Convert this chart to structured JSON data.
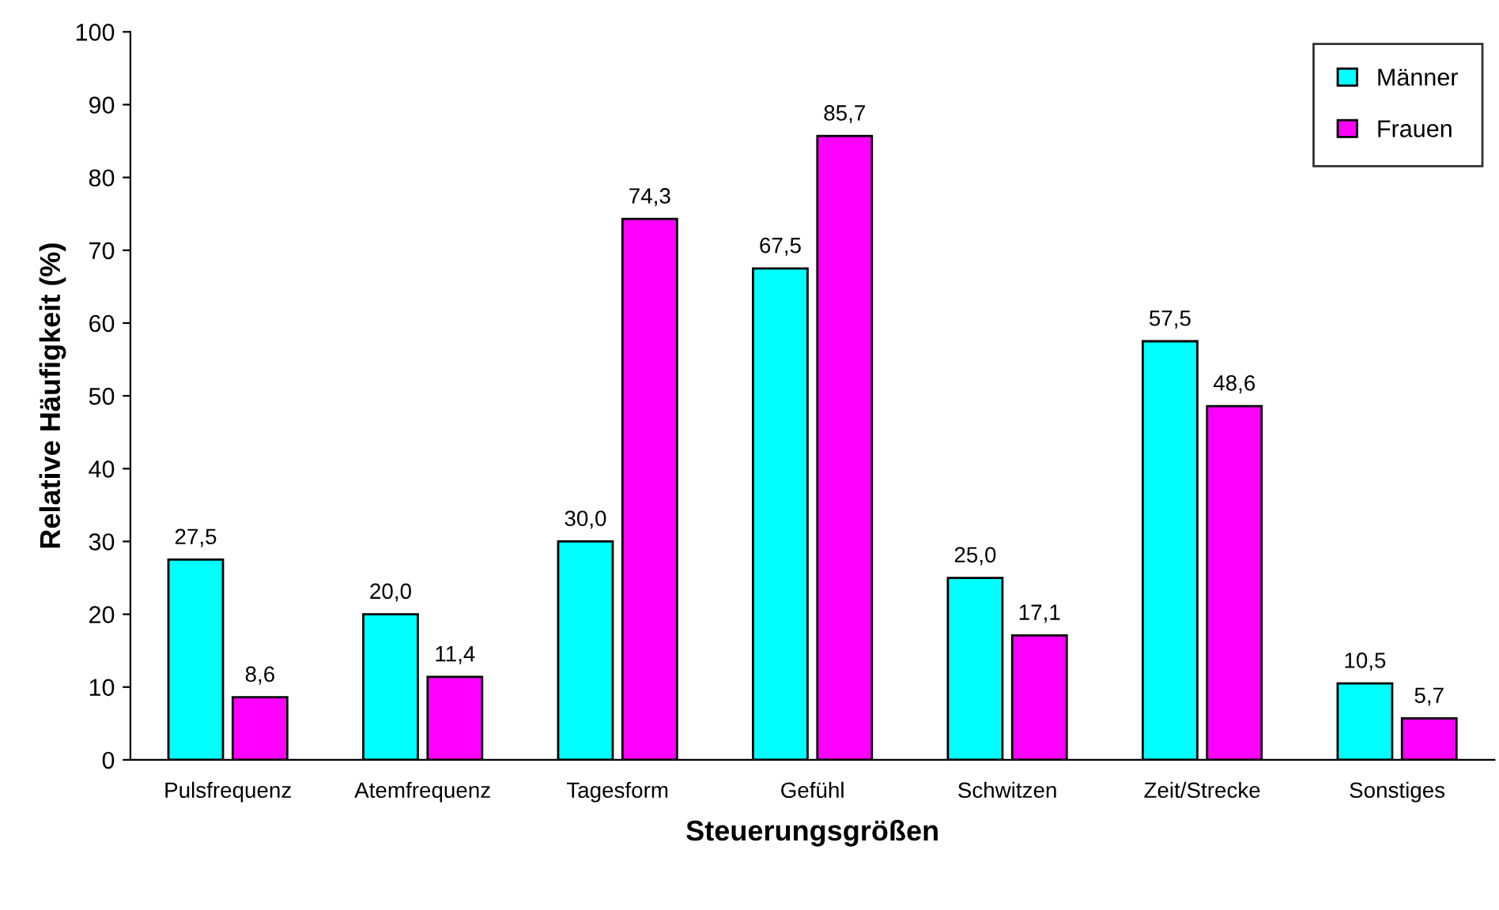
{
  "chart_data": {
    "type": "bar",
    "xlabel": "Steuerungsgrößen",
    "ylabel": "Relative Häufigkeit (%)",
    "categories": [
      "Pulsfrequenz",
      "Atemfrequenz",
      "Tagesform",
      "Gefühl",
      "Schwitzen",
      "Zeit/Strecke",
      "Sonstiges"
    ],
    "series": [
      {
        "name": "Männer",
        "color": "#00ffff",
        "values": [
          27.5,
          20.0,
          30.0,
          67.5,
          25.0,
          57.5,
          10.5
        ],
        "value_labels": [
          "27,5",
          "20,0",
          "30,0",
          "67,5",
          "25,0",
          "57,5",
          "10,5"
        ]
      },
      {
        "name": "Frauen",
        "color": "#ff00ff",
        "values": [
          8.6,
          11.4,
          74.3,
          85.7,
          17.1,
          48.6,
          5.7
        ],
        "value_labels": [
          "8,6",
          "11,4",
          "74,3",
          "85,7",
          "17,1",
          "48,6",
          "5,7"
        ]
      }
    ],
    "ylim": [
      0,
      100
    ],
    "yticks": [
      0,
      10,
      20,
      30,
      40,
      50,
      60,
      70,
      80,
      90,
      100
    ],
    "grid": false,
    "legend": "top right"
  }
}
